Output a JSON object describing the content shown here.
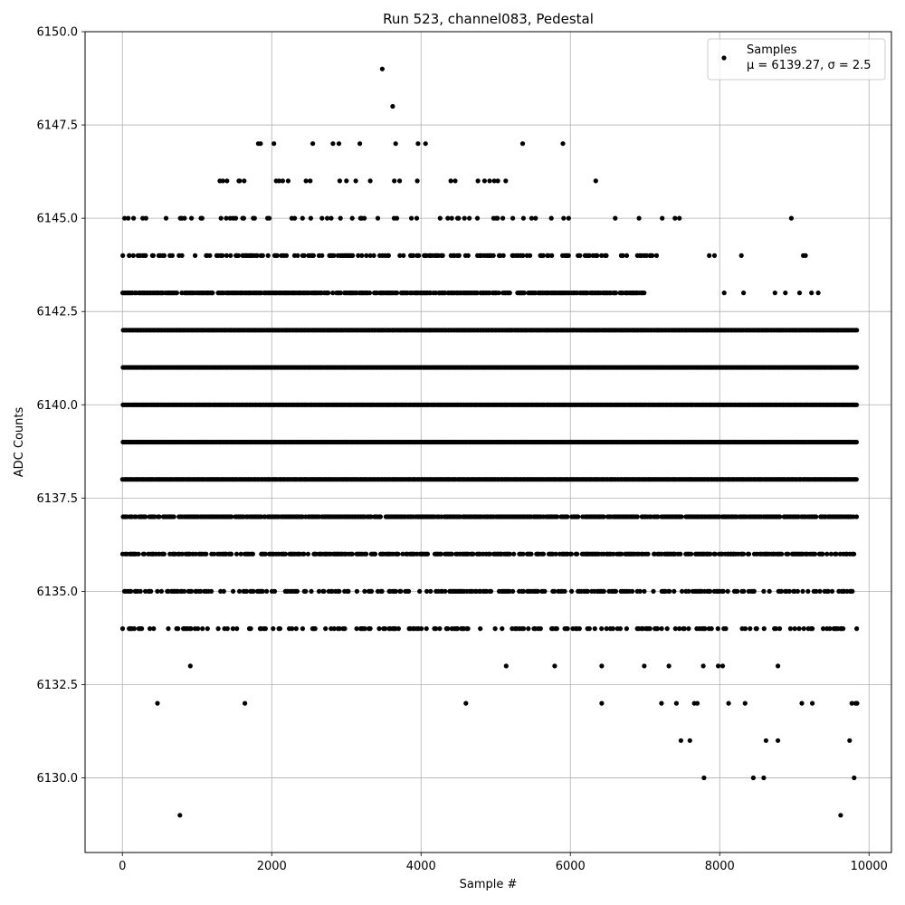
{
  "chart_data": {
    "type": "scatter",
    "title": "Run 523, channel083, Pedestal",
    "xlabel": "Sample #",
    "ylabel": "ADC Counts",
    "xlim": [
      -500,
      10300
    ],
    "ylim": [
      6128,
      6150
    ],
    "xticks": [
      0,
      2000,
      4000,
      6000,
      8000,
      10000
    ],
    "xtick_labels": [
      "0",
      "2000",
      "4000",
      "6000",
      "8000",
      "10000"
    ],
    "yticks": [
      6130.0,
      6132.5,
      6135.0,
      6137.5,
      6140.0,
      6142.5,
      6145.0,
      6147.5,
      6150.0
    ],
    "ytick_labels": [
      "6130.0",
      "6132.5",
      "6135.0",
      "6137.5",
      "6140.0",
      "6142.5",
      "6145.0",
      "6147.5",
      "6150.0"
    ],
    "grid": true,
    "legend": {
      "location": "upper right",
      "label_line1": "Samples",
      "label_line2": "μ = 6139.27, σ = 2.5"
    },
    "marker_color": "#000000",
    "series": [
      {
        "name": "Samples",
        "points": [
          [
            30,
            6145
          ],
          [
            40,
            6135
          ],
          [
            90,
            6144
          ],
          [
            90,
            6134
          ],
          [
            160,
            6134
          ],
          [
            220,
            6134
          ],
          [
            470,
            6132
          ],
          [
            770,
            6129
          ],
          [
            910,
            6133
          ],
          [
            1640,
            6132
          ],
          [
            1400,
            6146
          ],
          [
            1820,
            6147
          ],
          [
            1850,
            6147
          ],
          [
            2030,
            6147
          ],
          [
            2550,
            6147
          ],
          [
            2820,
            6147
          ],
          [
            2900,
            6147
          ],
          [
            3180,
            6147
          ],
          [
            3480,
            6149
          ],
          [
            3620,
            6148
          ],
          [
            3660,
            6147
          ],
          [
            3960,
            6147
          ],
          [
            4060,
            6147
          ],
          [
            5360,
            6147
          ],
          [
            5900,
            6147
          ],
          [
            6340,
            6146
          ],
          [
            6600,
            6145
          ],
          [
            6920,
            6145
          ],
          [
            7230,
            6145
          ],
          [
            7400,
            6145
          ],
          [
            7460,
            6145
          ],
          [
            8960,
            6145
          ],
          [
            7860,
            6144
          ],
          [
            7930,
            6144
          ],
          [
            8290,
            6144
          ],
          [
            9120,
            6144
          ],
          [
            9150,
            6144
          ],
          [
            8740,
            6143
          ],
          [
            8880,
            6143
          ],
          [
            9070,
            6143
          ],
          [
            9230,
            6143
          ],
          [
            9320,
            6143
          ],
          [
            8060,
            6143
          ],
          [
            8320,
            6143
          ],
          [
            4600,
            6132
          ],
          [
            5140,
            6133
          ],
          [
            5790,
            6133
          ],
          [
            6420,
            6133
          ],
          [
            6420,
            6132
          ],
          [
            6990,
            6133
          ],
          [
            7220,
            6132
          ],
          [
            7320,
            6133
          ],
          [
            7420,
            6132
          ],
          [
            7480,
            6131
          ],
          [
            7600,
            6131
          ],
          [
            7660,
            6132
          ],
          [
            7700,
            6132
          ],
          [
            7780,
            6133
          ],
          [
            7790,
            6130
          ],
          [
            7980,
            6133
          ],
          [
            8040,
            6133
          ],
          [
            8120,
            6132
          ],
          [
            8340,
            6132
          ],
          [
            8450,
            6130
          ],
          [
            8590,
            6130
          ],
          [
            8620,
            6131
          ],
          [
            8780,
            6131
          ],
          [
            8780,
            6133
          ],
          [
            9100,
            6132
          ],
          [
            9240,
            6132
          ],
          [
            9620,
            6129
          ],
          [
            9740,
            6131
          ],
          [
            9770,
            6132
          ],
          [
            9800,
            6130
          ],
          [
            9820,
            6132
          ],
          [
            9840,
            6132
          ]
        ]
      }
    ],
    "dense_bands": [
      {
        "level": 6142,
        "x_from": 0,
        "x_to": 9840,
        "density": 1.0
      },
      {
        "level": 6141,
        "x_from": 0,
        "x_to": 9840,
        "density": 1.0
      },
      {
        "level": 6140,
        "x_from": 0,
        "x_to": 9840,
        "density": 1.0
      },
      {
        "level": 6139,
        "x_from": 0,
        "x_to": 9840,
        "density": 1.0
      },
      {
        "level": 6138,
        "x_from": 0,
        "x_to": 9840,
        "density": 1.0
      },
      {
        "level": 6137,
        "x_from": 0,
        "x_to": 9840,
        "density": 0.85
      },
      {
        "level": 6143,
        "x_from": 0,
        "x_to": 7000,
        "density": 0.85
      },
      {
        "level": 6136,
        "x_from": 0,
        "x_to": 9840,
        "density": 0.65
      },
      {
        "level": 6144,
        "x_from": 0,
        "x_to": 7200,
        "density": 0.45
      },
      {
        "level": 6135,
        "x_from": 0,
        "x_to": 9840,
        "density": 0.45
      },
      {
        "level": 6134,
        "x_from": 0,
        "x_to": 9840,
        "density": 0.3
      },
      {
        "level": 6145,
        "x_from": 0,
        "x_to": 6000,
        "density": 0.18
      },
      {
        "level": 6146,
        "x_from": 1300,
        "x_to": 5200,
        "density": 0.08
      }
    ]
  }
}
